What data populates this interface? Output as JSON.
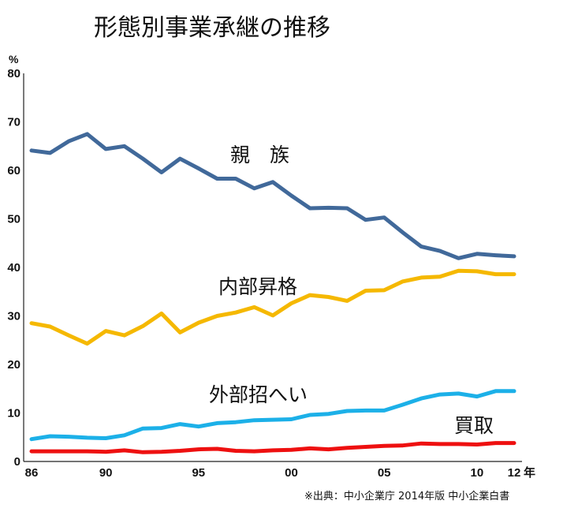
{
  "chart_data": {
    "type": "line",
    "title": "形態別事業承継の推移",
    "ylabel": "%",
    "xlabel": "年",
    "ylim": [
      0,
      80
    ],
    "xlim": [
      1986,
      2012
    ],
    "y_ticks": [
      "0",
      "10",
      "20",
      "30",
      "40",
      "50",
      "60",
      "70",
      "80"
    ],
    "x_ticks": [
      {
        "year": 1986,
        "label": "86"
      },
      {
        "year": 1990,
        "label": "90"
      },
      {
        "year": 1995,
        "label": "95"
      },
      {
        "year": 2000,
        "label": "00"
      },
      {
        "year": 2005,
        "label": "05"
      },
      {
        "year": 2010,
        "label": "10"
      },
      {
        "year": 2012,
        "label": "12"
      }
    ],
    "x": [
      1986,
      1987,
      1988,
      1989,
      1990,
      1991,
      1992,
      1993,
      1994,
      1995,
      1996,
      1997,
      1998,
      1999,
      2000,
      2001,
      2002,
      2003,
      2004,
      2005,
      2006,
      2007,
      2008,
      2009,
      2010,
      2011,
      2012
    ],
    "series": [
      {
        "name": "親　族",
        "color": "#41699a",
        "values": [
          64.1,
          63.6,
          66.0,
          67.5,
          64.4,
          65.0,
          62.4,
          59.6,
          62.4,
          60.4,
          58.3,
          58.3,
          56.3,
          57.6,
          54.8,
          52.2,
          52.3,
          52.2,
          49.8,
          50.3,
          47.2,
          44.3,
          43.4,
          41.9,
          42.8,
          42.5,
          42.3
        ]
      },
      {
        "name": "内部昇格",
        "color": "#f5b800",
        "values": [
          28.5,
          27.8,
          26.0,
          24.3,
          26.9,
          26.0,
          27.9,
          30.5,
          26.6,
          28.6,
          30.0,
          30.7,
          31.8,
          30.1,
          32.6,
          34.3,
          33.9,
          33.1,
          35.2,
          35.3,
          37.1,
          37.9,
          38.1,
          39.3,
          39.2,
          38.6,
          38.6
        ]
      },
      {
        "name": "外部招へい",
        "color": "#1cb0e8",
        "values": [
          4.6,
          5.2,
          5.1,
          4.9,
          4.8,
          5.4,
          6.8,
          6.9,
          7.7,
          7.2,
          7.9,
          8.1,
          8.5,
          8.6,
          8.7,
          9.6,
          9.8,
          10.4,
          10.5,
          10.5,
          11.7,
          13.0,
          13.8,
          14.0,
          13.4,
          14.5,
          14.5
        ]
      },
      {
        "name": "買取",
        "color": "#ee1010",
        "values": [
          2.1,
          2.1,
          2.1,
          2.1,
          2.0,
          2.3,
          1.9,
          2.0,
          2.2,
          2.5,
          2.6,
          2.2,
          2.1,
          2.3,
          2.4,
          2.7,
          2.5,
          2.8,
          3.0,
          3.2,
          3.3,
          3.7,
          3.6,
          3.6,
          3.5,
          3.8,
          3.8
        ]
      }
    ],
    "source": "※出典：中小企業庁  2014年版  中小企業白書"
  }
}
